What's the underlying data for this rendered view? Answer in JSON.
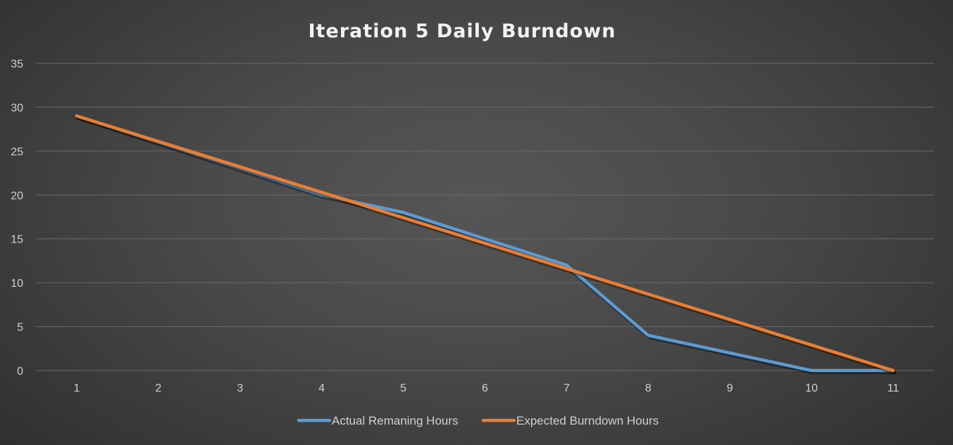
{
  "chart_data": {
    "type": "line",
    "title": "Iteration 5 Daily Burndown",
    "xlabel": "",
    "ylabel": "",
    "x": [
      1,
      2,
      3,
      4,
      5,
      6,
      7,
      8,
      9,
      10,
      11
    ],
    "ylim": [
      0,
      35
    ],
    "yticks": [
      0,
      5,
      10,
      15,
      20,
      25,
      30,
      35
    ],
    "grid": true,
    "legend": "bottom",
    "series": [
      {
        "name": "Actual Remaning Hours",
        "color": "#5b9bd5",
        "values": [
          29,
          26,
          23,
          20,
          18,
          15,
          12,
          4,
          2,
          0,
          0
        ]
      },
      {
        "name": "Expected Burndown Hours",
        "color": "#ed7d31",
        "values": [
          29,
          26.1,
          23.2,
          20.3,
          17.4,
          14.5,
          11.6,
          8.7,
          5.8,
          2.9,
          0
        ]
      }
    ]
  }
}
